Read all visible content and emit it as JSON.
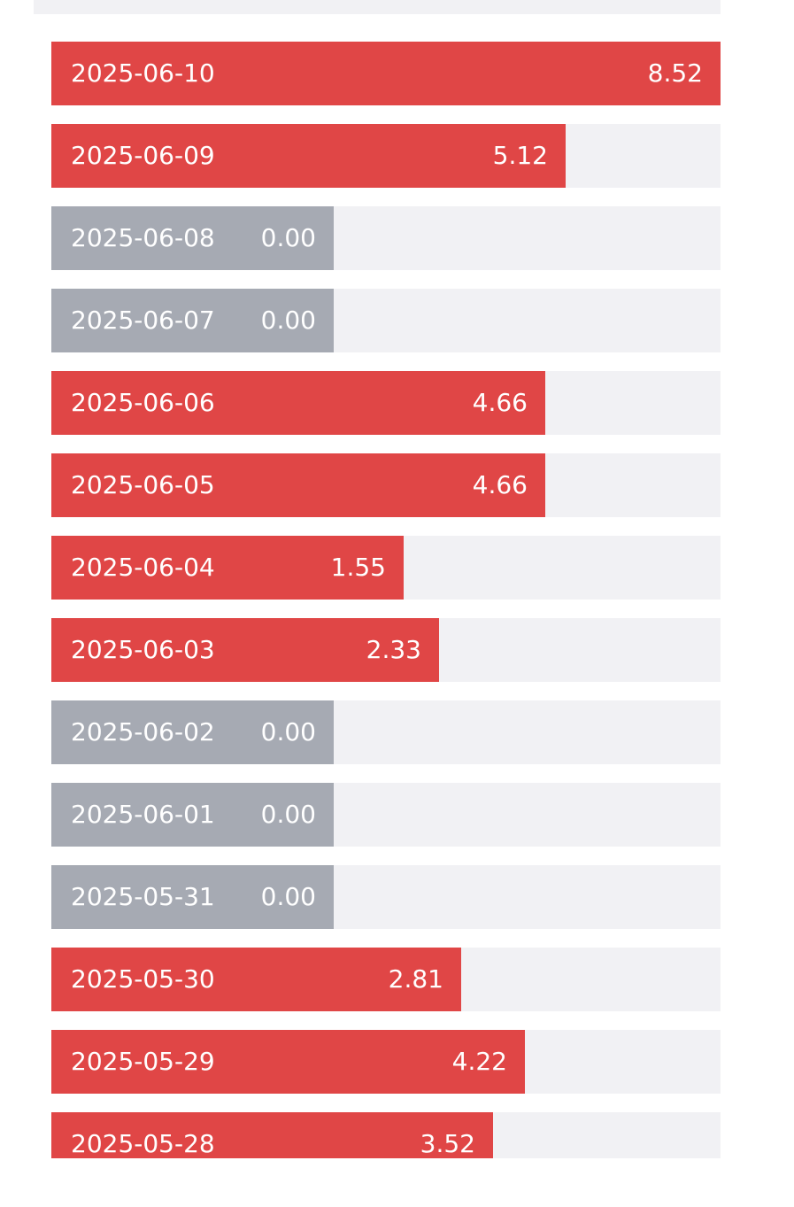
{
  "chart_data": {
    "type": "bar",
    "orientation": "horizontal",
    "categories": [
      "2025-06-10",
      "2025-06-09",
      "2025-06-08",
      "2025-06-07",
      "2025-06-06",
      "2025-06-05",
      "2025-06-04",
      "2025-06-03",
      "2025-06-02",
      "2025-06-01",
      "2025-05-31",
      "2025-05-30",
      "2025-05-29",
      "2025-05-28"
    ],
    "values": [
      8.52,
      5.12,
      0.0,
      0.0,
      4.66,
      4.66,
      1.55,
      2.33,
      0.0,
      0.0,
      0.0,
      2.81,
      4.22,
      3.52
    ],
    "value_labels": [
      "8.52",
      "5.12",
      "0.00",
      "0.00",
      "4.66",
      "4.66",
      "1.55",
      "2.33",
      "0.00",
      "0.00",
      "0.00",
      "2.81",
      "4.22",
      "3.52"
    ],
    "title": "",
    "xlabel": "",
    "ylabel": "",
    "legend": "none",
    "grid": false,
    "colors": {
      "positive": "#e04646",
      "zero": "#a6aab3",
      "track": "#f1f1f4",
      "label": "#ffffff"
    }
  }
}
